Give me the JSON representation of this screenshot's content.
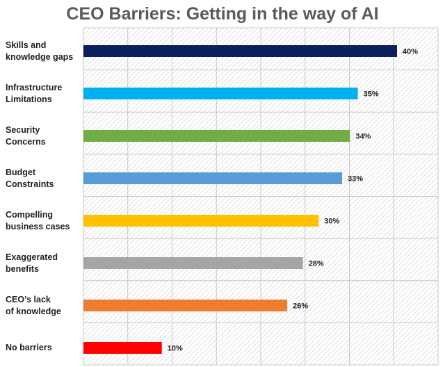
{
  "chart_data": {
    "type": "bar",
    "orientation": "horizontal",
    "title": "CEO Barriers: Getting in the way of AI",
    "categories": [
      [
        "Skills and",
        "knowledge gaps"
      ],
      [
        "Infrastructure",
        "Limitations"
      ],
      [
        "Security",
        "Concerns"
      ],
      [
        "Budget",
        "Constraints"
      ],
      [
        "Compelling",
        "business cases"
      ],
      [
        "Exaggerated",
        "benefits"
      ],
      [
        "CEO’s lack",
        "of knowledge"
      ],
      [
        "No barriers"
      ]
    ],
    "values": [
      40,
      35,
      34,
      33,
      30,
      28,
      26,
      10
    ],
    "value_labels": [
      "40%",
      "35%",
      "34%",
      "33%",
      "30%",
      "28%",
      "26%",
      "10%"
    ],
    "colors": [
      "#0b1f5c",
      "#00b0f0",
      "#70ad47",
      "#5b9bd5",
      "#ffc000",
      "#a5a5a5",
      "#ed7d31",
      "#ff0000"
    ],
    "xlim": [
      0,
      40
    ],
    "grid": true,
    "background_pattern": "hatched"
  }
}
